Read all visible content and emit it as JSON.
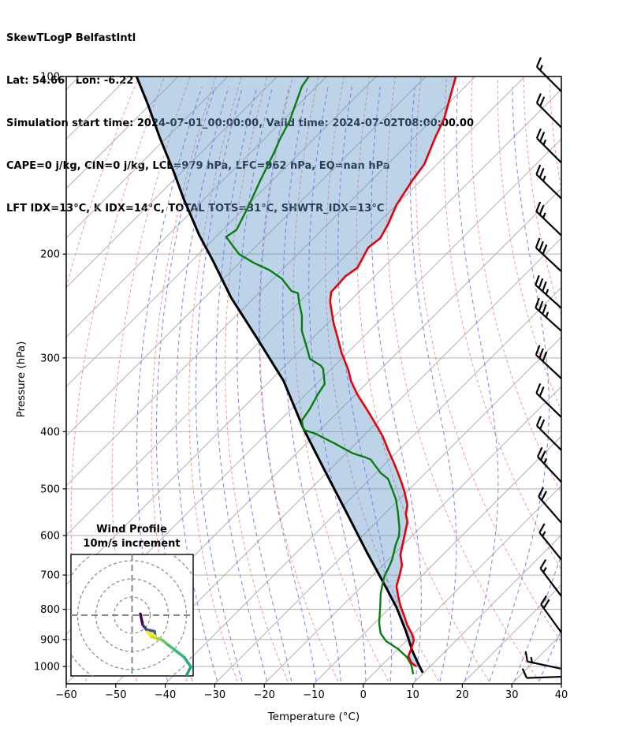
{
  "header": {
    "line1": "SkewTLogP BelfastIntl",
    "line2": "Lat: 54.66   Lon: -6.22",
    "line3": "Simulation start time: 2024-07-01_00:00:00, Valid time: 2024-07-02T08:00:00.00",
    "line4": "CAPE=0 j/kg, CIN=0 j/kg, LCL=979 hPa, LFC=962 hPa, EQ=nan hPa",
    "line5": "LFT IDX=13°C, K IDX=14°C, TOTAL TOTS=31°C, SHWTR_IDX=13°C"
  },
  "chart_data": {
    "type": "skewt-logp",
    "note": "Profile x-values are skewed display coordinates in degC read on the bottom axis; y-values are pressure in hPa (log scale).",
    "x_axis": {
      "label": "Temperature (°C)",
      "ticks": [
        -60,
        -50,
        -40,
        -30,
        -20,
        -10,
        0,
        10,
        20,
        30,
        40
      ],
      "range": [
        -60,
        40
      ]
    },
    "y_axis": {
      "label": "Pressure (hPa)",
      "ticks": [
        100,
        200,
        300,
        400,
        500,
        600,
        700,
        800,
        900,
        1000
      ],
      "range": [
        100,
        1065
      ],
      "scale": "log"
    },
    "background": {
      "isotherms": {
        "min": -180,
        "max": 40,
        "step": 10
      },
      "dry_adiabats": {
        "min": -70,
        "max": 150,
        "step": 10
      },
      "moist_adiabats": {
        "min": -40,
        "max": 40,
        "step": 5
      }
    },
    "temperature_profile": [
      [
        18.7,
        100
      ],
      [
        17.7,
        107
      ],
      [
        16.3,
        118
      ],
      [
        14.5,
        127
      ],
      [
        12.3,
        141
      ],
      [
        9.9,
        150
      ],
      [
        6.7,
        165
      ],
      [
        5.0,
        178
      ],
      [
        3.4,
        188
      ],
      [
        1.0,
        195
      ],
      [
        -1.2,
        211
      ],
      [
        -3.6,
        218
      ],
      [
        -6.5,
        232
      ],
      [
        -6.7,
        241
      ],
      [
        -6.0,
        262
      ],
      [
        -5.4,
        273
      ],
      [
        -4.4,
        294
      ],
      [
        -3.0,
        315
      ],
      [
        -2.5,
        328
      ],
      [
        -1.2,
        346
      ],
      [
        1.0,
        370
      ],
      [
        2.7,
        391
      ],
      [
        3.9,
        407
      ],
      [
        5.1,
        431
      ],
      [
        6.2,
        452
      ],
      [
        7.0,
        470
      ],
      [
        7.8,
        490
      ],
      [
        8.3,
        505
      ],
      [
        8.9,
        532
      ],
      [
        8.6,
        552
      ],
      [
        8.9,
        569
      ],
      [
        8.2,
        607
      ],
      [
        7.5,
        646
      ],
      [
        7.8,
        674
      ],
      [
        7.3,
        702
      ],
      [
        6.7,
        731
      ],
      [
        7.0,
        758
      ],
      [
        7.5,
        789
      ],
      [
        8.2,
        819
      ],
      [
        8.9,
        852
      ],
      [
        9.9,
        884
      ],
      [
        10.2,
        903
      ],
      [
        9.6,
        937
      ],
      [
        9.1,
        961
      ],
      [
        9.7,
        985
      ],
      [
        10.7,
        1000
      ]
    ],
    "dewpoint_profile": [
      [
        -11.0,
        100
      ],
      [
        -12.4,
        104
      ],
      [
        -14.9,
        119
      ],
      [
        -16.9,
        128
      ],
      [
        -18.1,
        135
      ],
      [
        -20.8,
        150
      ],
      [
        -22.9,
        164
      ],
      [
        -25.6,
        182
      ],
      [
        -27.7,
        187
      ],
      [
        -25.1,
        200
      ],
      [
        -22.1,
        207
      ],
      [
        -18.9,
        213
      ],
      [
        -16.5,
        220
      ],
      [
        -14.5,
        231
      ],
      [
        -13.2,
        233
      ],
      [
        -12.9,
        243
      ],
      [
        -12.4,
        254
      ],
      [
        -12.4,
        270
      ],
      [
        -11.3,
        290
      ],
      [
        -10.8,
        301
      ],
      [
        -8.6,
        309
      ],
      [
        -8.1,
        313
      ],
      [
        -7.8,
        332
      ],
      [
        -9.2,
        346
      ],
      [
        -10.8,
        366
      ],
      [
        -12.4,
        383
      ],
      [
        -12.1,
        397
      ],
      [
        -9.7,
        403
      ],
      [
        -6.0,
        418
      ],
      [
        -2.2,
        435
      ],
      [
        0.4,
        442
      ],
      [
        1.5,
        446
      ],
      [
        3.5,
        470
      ],
      [
        5.0,
        481
      ],
      [
        5.8,
        500
      ],
      [
        6.6,
        521
      ],
      [
        7.0,
        549
      ],
      [
        7.3,
        583
      ],
      [
        7.2,
        602
      ],
      [
        6.6,
        620
      ],
      [
        5.8,
        660
      ],
      [
        5.1,
        681
      ],
      [
        4.3,
        702
      ],
      [
        3.9,
        724
      ],
      [
        3.5,
        753
      ],
      [
        3.4,
        794
      ],
      [
        3.2,
        844
      ],
      [
        3.5,
        879
      ],
      [
        4.6,
        906
      ],
      [
        7.0,
        934
      ],
      [
        8.8,
        964
      ],
      [
        9.7,
        994
      ],
      [
        10.1,
        1031
      ]
    ],
    "parcel_profile": [
      [
        -45.8,
        100
      ],
      [
        -43.6,
        111
      ],
      [
        -41.1,
        127
      ],
      [
        -38.3,
        145
      ],
      [
        -36.3,
        161
      ],
      [
        -33.1,
        186
      ],
      [
        -30.4,
        205
      ],
      [
        -26.7,
        237
      ],
      [
        -21.3,
        279
      ],
      [
        -16.1,
        328
      ],
      [
        -12.1,
        395
      ],
      [
        -8.1,
        460
      ],
      [
        -3.6,
        544
      ],
      [
        0.7,
        640
      ],
      [
        4.6,
        735
      ],
      [
        6.7,
        794
      ],
      [
        8.6,
        871
      ],
      [
        9.9,
        941
      ],
      [
        11.0,
        985
      ],
      [
        12.0,
        1025
      ]
    ],
    "wind_barbs": [
      {
        "p": 106,
        "speed": 15,
        "dir": 135
      },
      {
        "p": 122,
        "speed": 20,
        "dir": 135
      },
      {
        "p": 140,
        "speed": 25,
        "dir": 135
      },
      {
        "p": 161,
        "speed": 25,
        "dir": 136
      },
      {
        "p": 186,
        "speed": 25,
        "dir": 136
      },
      {
        "p": 214,
        "speed": 30,
        "dir": 137
      },
      {
        "p": 247,
        "speed": 35,
        "dir": 138
      },
      {
        "p": 270,
        "speed": 35,
        "dir": 138
      },
      {
        "p": 325,
        "speed": 30,
        "dir": 137
      },
      {
        "p": 378,
        "speed": 20,
        "dir": 136
      },
      {
        "p": 430,
        "speed": 20,
        "dir": 135
      },
      {
        "p": 487,
        "speed": 25,
        "dir": 133
      },
      {
        "p": 571,
        "speed": 20,
        "dir": 131
      },
      {
        "p": 659,
        "speed": 15,
        "dir": 129
      },
      {
        "p": 760,
        "speed": 15,
        "dir": 127
      },
      {
        "p": 876,
        "speed": 20,
        "dir": 126
      },
      {
        "p": 1009,
        "speed": 15,
        "dir": 168
      },
      {
        "p": 1041,
        "speed": 10,
        "dir": 182
      }
    ],
    "hodograph": {
      "title": "Wind Profile",
      "subtitle": "10m/s increment",
      "rings_ms": [
        10,
        20,
        30,
        40
      ],
      "trace": [
        {
          "u": 4.6,
          "v": 0.7
        },
        {
          "u": 5.9,
          "v": -5.4
        },
        {
          "u": 8.0,
          "v": -8.0
        },
        {
          "u": 12.4,
          "v": -8.9
        },
        {
          "u": 12.8,
          "v": -11.5
        },
        {
          "u": 8.5,
          "v": -9.3
        },
        {
          "u": 10.7,
          "v": -12.0
        },
        {
          "u": 14.1,
          "v": -12.8
        },
        {
          "u": 16.7,
          "v": -13.7
        },
        {
          "u": 19.8,
          "v": -16.3
        },
        {
          "u": 23.7,
          "v": -19.3
        },
        {
          "u": 28.9,
          "v": -23.3
        },
        {
          "u": 32.4,
          "v": -28.5
        },
        {
          "u": 30.2,
          "v": -32.8
        }
      ],
      "trace_segment_colors": [
        "#440154",
        "#472d7b",
        "#3b528b",
        "#31688e",
        "#fde725",
        "#fde725",
        "#c8e020",
        "#90d743",
        "#5ec962",
        "#44bf70",
        "#35b779",
        "#28ae80",
        "#20a386"
      ]
    },
    "colors": {
      "temperature": "#e8000b",
      "dewpoint": "#0a7d12",
      "parcel": "#000000",
      "shading": "rgba(95,150,199,0.42)",
      "isotherm": "#b0b0b0",
      "pressure_grid": "#b0b0b0",
      "dry_adiabat": "#ef8080",
      "moist_adiabat": "#7577dd",
      "barb": "#000000",
      "hodo_ring": "#888888"
    }
  }
}
